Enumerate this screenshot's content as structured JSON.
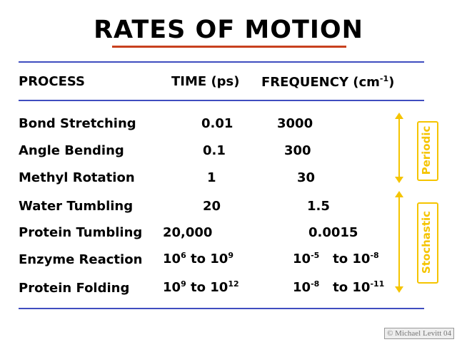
{
  "title": "RATES OF MOTION",
  "headers": {
    "process": "PROCESS",
    "time": "TIME (ps)",
    "frequency": "FREQUENCY (cm",
    "frequency_sup": "-1",
    "frequency_close": ")"
  },
  "rows": [
    {
      "process": "Bond Stretching",
      "time": "0.01",
      "freq": "3000"
    },
    {
      "process": "Angle Bending",
      "time": "0.1",
      "freq": "300"
    },
    {
      "process": "Methyl Rotation",
      "time": "1",
      "freq": "30"
    },
    {
      "process": "Water Tumbling",
      "time": "20",
      "freq": "1.5"
    },
    {
      "process": "Protein Tumbling",
      "time": "20,000",
      "freq": "0.0015"
    },
    {
      "process": "Enzyme Reaction",
      "time_base1": "10",
      "time_exp1": "6",
      "time_to": "to",
      "time_base2": "10",
      "time_exp2": "9",
      "freq_base1": "10",
      "freq_exp1": "-5",
      "freq_to": "to",
      "freq_base2": "10",
      "freq_exp2": "-8"
    },
    {
      "process": "Protein Folding",
      "time_base1": "10",
      "time_exp1": "9",
      "time_to": "to",
      "time_base2": "10",
      "time_exp2": "12",
      "freq_base1": "10",
      "freq_exp1": "-8",
      "freq_to": "to",
      "freq_base2": "10",
      "freq_exp2": "-11"
    }
  ],
  "labels": {
    "periodic": "Periodic",
    "stochastic": "Stochastic"
  },
  "copyright": "© Michael Levitt 04",
  "colors": {
    "accent_yellow": "#f5c400",
    "rule_blue": "#3f4dbf",
    "underline_red": "#c8401e"
  }
}
